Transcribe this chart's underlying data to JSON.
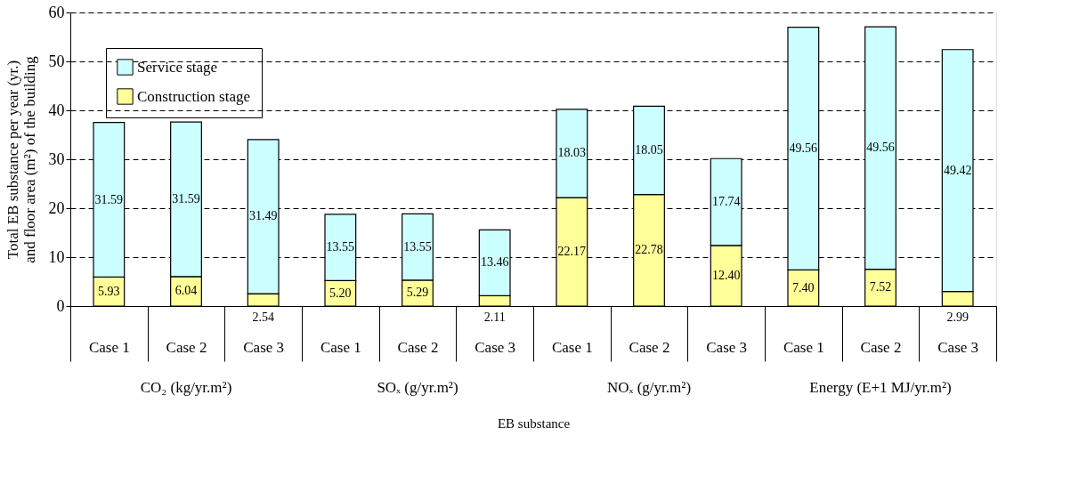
{
  "chart_data": {
    "type": "bar",
    "stacked": true,
    "xlabel": "EB substance",
    "ylabel": "Total EB substance per year (yr.)\nand floor area (m²) of the building",
    "categories": [
      "Case 1",
      "Case 2",
      "Case 3",
      "Case 1",
      "Case 2",
      "Case 3",
      "Case 1",
      "Case 2",
      "Case 3",
      "Case 1",
      "Case 2",
      "Case 3"
    ],
    "series": [
      {
        "name": "Construction stage",
        "color": "#ffff99",
        "values": [
          5.93,
          6.04,
          2.54,
          5.2,
          5.29,
          2.11,
          22.17,
          22.78,
          12.4,
          7.4,
          7.52,
          2.99
        ],
        "value_labels": [
          "5.93",
          "6.04",
          "2.54",
          "5.20",
          "5.29",
          "2.11",
          "22.17",
          "22.78",
          "12.40",
          "7.40",
          "7.52",
          "2.99"
        ]
      },
      {
        "name": "Service stage",
        "color": "#ccffff",
        "values": [
          31.59,
          31.59,
          31.49,
          13.55,
          13.55,
          13.46,
          18.03,
          18.05,
          17.74,
          49.56,
          49.56,
          49.42
        ],
        "value_labels": [
          "31.59",
          "31.59",
          "31.49",
          "13.55",
          "13.55",
          "13.46",
          "18.03",
          "18.05",
          "17.74",
          "49.56",
          "49.56",
          "49.42"
        ]
      }
    ],
    "annotations": [
      "CO₂ (kg/yr.m²)",
      "SOₓ (g/yr.m²)",
      "NOₓ (g/yr.m²)",
      "Energy (E+1 MJ/yr.m²)"
    ],
    "ylim": [
      0,
      60
    ],
    "yticks": [
      0,
      10,
      20,
      30,
      40,
      50,
      60
    ],
    "grid": "y",
    "legend": "top left"
  }
}
